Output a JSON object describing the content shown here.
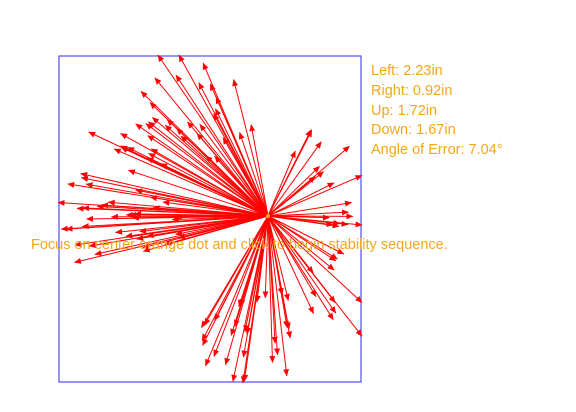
{
  "colors": {
    "text": "#f5a51c",
    "vector": "#ff0000",
    "frame": "#5050e8",
    "center_dot": "#f5a51c"
  },
  "stats": {
    "left": "Left: 2.23in",
    "right": "Right: 0.92in",
    "up": "Up: 1.72in",
    "down": "Down: 1.67in",
    "angle_of_error": "Angle of Error: 7.04°"
  },
  "instruction": "Focus on center orange dot and click to begin stability sequence."
}
